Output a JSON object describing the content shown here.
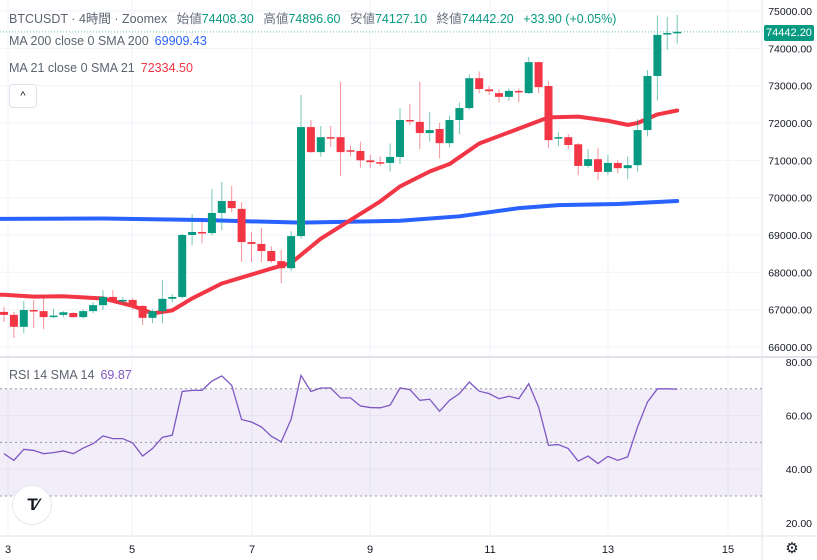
{
  "header": {
    "symbol": "BTCUSDT",
    "sep1": "·",
    "interval": "4時間",
    "sep2": "·",
    "exchange": "Zoomex",
    "open_label": "始値",
    "open": "74408.30",
    "high_label": "高値",
    "high": "74896.60",
    "low_label": "安値",
    "low": "74127.10",
    "close_label": "終値",
    "close": "74442.20",
    "change": "+33.90 (+0.05%)"
  },
  "indicators": {
    "ma200": {
      "label": "MA 200 close 0 SMA 200",
      "value": "69909.43",
      "color": "#2962ff"
    },
    "ma21": {
      "label": "MA 21 close 0 SMA 21",
      "value": "72334.50",
      "color": "#f23645"
    },
    "rsi": {
      "label": "RSI 14 SMA 14",
      "value": "69.87",
      "color": "#7e57c2"
    }
  },
  "last_price_label": "74442.20",
  "buttons": {
    "collapse": "^",
    "logo": "TV",
    "settings": "⚙"
  },
  "chart_data": [
    {
      "type": "candlestick",
      "title": "BTCUSDT 4h",
      "ylim": [
        65800,
        75300
      ],
      "yticks": [
        "75000.00",
        "74000.00",
        "73000.00",
        "72000.00",
        "71000.00",
        "70000.00",
        "69000.00",
        "68000.00",
        "67000.00",
        "66000.00"
      ],
      "xticks": [
        "3",
        "5",
        "7",
        "9",
        "11",
        "13",
        "15"
      ],
      "colors": {
        "up": "#089981",
        "down": "#f23645"
      },
      "candles_ohlc": [
        [
          66940,
          67070,
          66670,
          66860
        ],
        [
          66860,
          66940,
          66240,
          66540
        ],
        [
          66540,
          67230,
          66370,
          66990
        ],
        [
          66990,
          67260,
          66510,
          66960
        ],
        [
          66960,
          67310,
          66480,
          66800
        ],
        [
          66800,
          67020,
          66770,
          66840
        ],
        [
          66860,
          66960,
          66800,
          66930
        ],
        [
          66910,
          66930,
          66780,
          66800
        ],
        [
          66800,
          67000,
          66760,
          66960
        ],
        [
          66960,
          67200,
          66900,
          67120
        ],
        [
          67120,
          67520,
          66990,
          67340
        ],
        [
          67340,
          67520,
          67180,
          67230
        ],
        [
          67230,
          67340,
          67150,
          67260
        ],
        [
          67260,
          67310,
          67000,
          67100
        ],
        [
          67100,
          67120,
          66590,
          66780
        ],
        [
          66780,
          67010,
          66640,
          66960
        ],
        [
          66960,
          67800,
          66640,
          67290
        ],
        [
          67290,
          67420,
          67200,
          67340
        ],
        [
          67340,
          69030,
          67290,
          69000
        ],
        [
          69000,
          69560,
          68730,
          69080
        ],
        [
          69080,
          69350,
          68780,
          69050
        ],
        [
          69050,
          70230,
          68990,
          69590
        ],
        [
          69590,
          70420,
          69130,
          69910
        ],
        [
          69910,
          70310,
          69600,
          69720
        ],
        [
          69700,
          69880,
          68280,
          68810
        ],
        [
          68810,
          69080,
          68280,
          68760
        ],
        [
          68760,
          69190,
          68270,
          68570
        ],
        [
          68570,
          68700,
          68250,
          68300
        ],
        [
          68300,
          68600,
          67710,
          68110
        ],
        [
          68110,
          69100,
          68030,
          68970
        ],
        [
          68970,
          72750,
          68900,
          71890
        ],
        [
          71890,
          72080,
          71200,
          71220
        ],
        [
          71220,
          71920,
          71100,
          71620
        ],
        [
          71620,
          71920,
          71360,
          71600
        ],
        [
          71620,
          73100,
          70580,
          71220
        ],
        [
          71270,
          71400,
          71100,
          71250
        ],
        [
          71250,
          71500,
          70800,
          71000
        ],
        [
          71000,
          71150,
          70800,
          70950
        ],
        [
          70950,
          71100,
          70850,
          70920
        ],
        [
          70930,
          71450,
          70700,
          71090
        ],
        [
          71090,
          72400,
          70900,
          72080
        ],
        [
          72080,
          72510,
          71950,
          72050
        ],
        [
          72030,
          73100,
          71300,
          71730
        ],
        [
          71730,
          72300,
          71500,
          71810
        ],
        [
          71840,
          72000,
          71050,
          71460
        ],
        [
          71460,
          72200,
          71350,
          72080
        ],
        [
          72080,
          72550,
          71700,
          72400
        ],
        [
          72400,
          73300,
          72350,
          73200
        ],
        [
          73200,
          73380,
          72800,
          72910
        ],
        [
          72900,
          72990,
          72750,
          72850
        ],
        [
          72800,
          72900,
          72550,
          72700
        ],
        [
          72700,
          72920,
          72600,
          72860
        ],
        [
          72860,
          72920,
          72550,
          72830
        ],
        [
          72800,
          73770,
          72780,
          73630
        ],
        [
          73630,
          73650,
          72800,
          72960
        ],
        [
          72990,
          73120,
          71330,
          71540
        ],
        [
          71600,
          71760,
          71380,
          71620
        ],
        [
          71620,
          71700,
          71300,
          71410
        ],
        [
          71430,
          71460,
          70600,
          70850
        ],
        [
          70850,
          71300,
          70800,
          71030
        ],
        [
          71030,
          71330,
          70470,
          70690
        ],
        [
          70690,
          71150,
          70600,
          70930
        ],
        [
          70930,
          71000,
          70650,
          70790
        ],
        [
          70790,
          71100,
          70500,
          70870
        ],
        [
          70870,
          72100,
          70700,
          71810
        ],
        [
          71810,
          73420,
          71640,
          73260
        ],
        [
          73260,
          74880,
          72600,
          74360
        ],
        [
          74380,
          74840,
          73960,
          74410
        ],
        [
          74408.3,
          74896.6,
          74127.1,
          74442.2
        ]
      ],
      "ma200_points": [
        [
          0,
          69430
        ],
        [
          10,
          69440
        ],
        [
          20,
          69400
        ],
        [
          30,
          69330
        ],
        [
          40,
          69380
        ],
        [
          46,
          69500
        ],
        [
          52,
          69720
        ],
        [
          56,
          69800
        ],
        [
          62,
          69830
        ],
        [
          68,
          69909.43
        ]
      ],
      "ma21_points": [
        [
          0,
          67400
        ],
        [
          3,
          67350
        ],
        [
          6,
          67360
        ],
        [
          10,
          67300
        ],
        [
          13,
          67100
        ],
        [
          15,
          66900
        ],
        [
          17,
          66980
        ],
        [
          19,
          67300
        ],
        [
          22,
          67700
        ],
        [
          27,
          68100
        ],
        [
          29,
          68250
        ],
        [
          32,
          68900
        ],
        [
          35,
          69400
        ],
        [
          38,
          69900
        ],
        [
          40,
          70300
        ],
        [
          43,
          70700
        ],
        [
          45,
          70900
        ],
        [
          48,
          71450
        ],
        [
          51,
          71750
        ],
        [
          55,
          72150
        ],
        [
          58,
          72170
        ],
        [
          61,
          72060
        ],
        [
          63,
          71950
        ],
        [
          64,
          72000
        ],
        [
          66,
          72230
        ],
        [
          68,
          72334.5
        ]
      ]
    },
    {
      "type": "line",
      "title": "RSI 14 SMA 14",
      "ylim": [
        15,
        85
      ],
      "yticks": [
        "80.00",
        "60.00",
        "40.00",
        "20.00"
      ],
      "bands": [
        70,
        50,
        30
      ],
      "values": [
        45.8,
        43.3,
        47.4,
        47,
        45.8,
        46.2,
        46.8,
        45.8,
        47.9,
        49.5,
        52.4,
        51.4,
        51.4,
        49.8,
        44.9,
        47.7,
        51.9,
        52.7,
        69,
        69.4,
        69.4,
        72.9,
        74.8,
        71.3,
        58.5,
        57.6,
        55.8,
        52.3,
        50.2,
        58.6,
        75,
        69,
        70.3,
        70.3,
        66.6,
        66.6,
        63.6,
        63,
        62.9,
        63.9,
        70.3,
        69.7,
        65.7,
        66.1,
        61.6,
        65.7,
        68.2,
        72.5,
        69.1,
        68.2,
        66.3,
        67.2,
        66.3,
        71.9,
        63.2,
        48.9,
        49.2,
        47.7,
        43,
        44.9,
        42.1,
        44.8,
        43.3,
        44.6,
        55.8,
        65.1,
        70,
        70,
        69.87
      ]
    }
  ]
}
